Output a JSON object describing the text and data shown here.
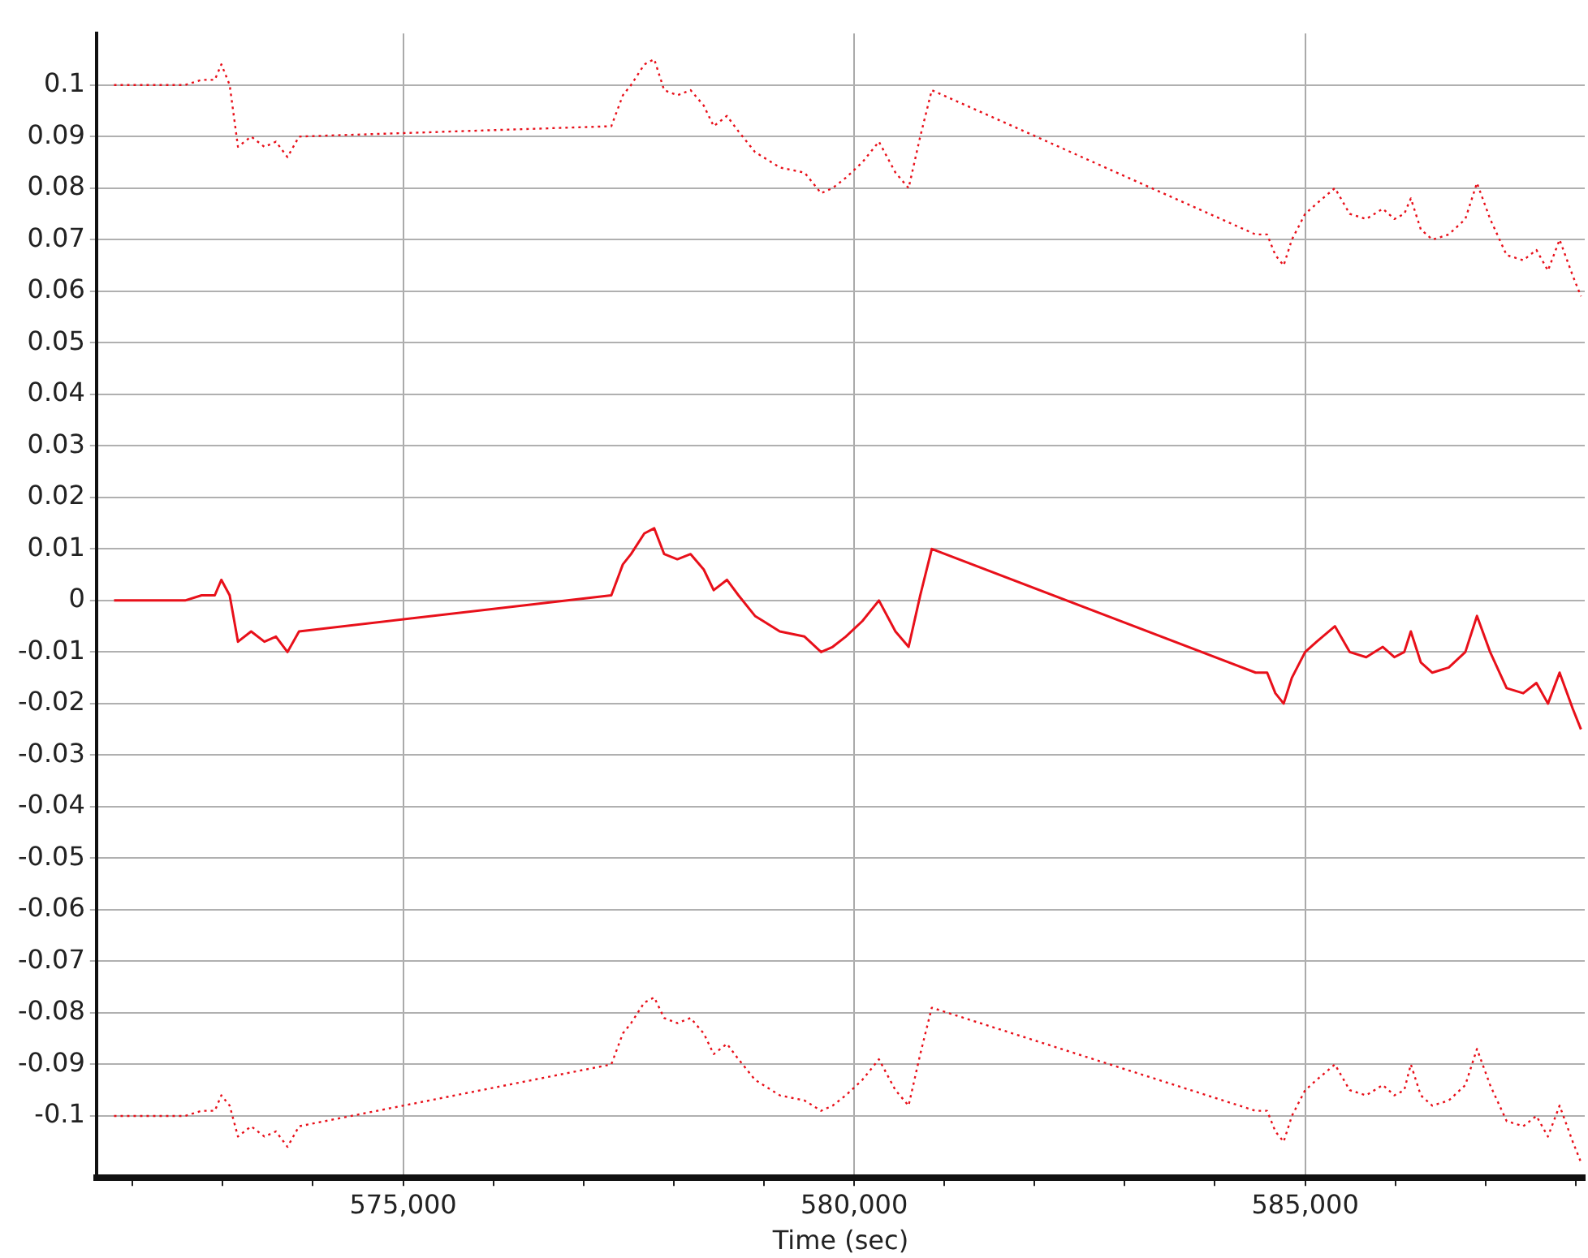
{
  "chart_data": {
    "type": "line",
    "xlabel": "Time (sec)",
    "x": [
      571795,
      572582,
      572766,
      572912,
      572985,
      573077,
      573169,
      573315,
      573462,
      573590,
      573718,
      573846,
      577308,
      577436,
      577527,
      577674,
      577784,
      577894,
      578040,
      578187,
      578333,
      578443,
      578590,
      578718,
      578901,
      579176,
      579450,
      579634,
      579762,
      579908,
      580091,
      580275,
      580458,
      580604,
      580733,
      580861,
      584451,
      584579,
      584670,
      584762,
      584853,
      585000,
      585128,
      585330,
      585494,
      585677,
      585861,
      585989,
      586099,
      586172,
      586282,
      586410,
      586593,
      586776,
      586905,
      587051,
      587234,
      587418,
      587564,
      587692,
      587821,
      587967,
      588058
    ],
    "series": [
      {
        "color": "#e8101a",
        "line_style": "dotted",
        "values": [
          0.1,
          0.1,
          0.101,
          0.101,
          0.104,
          0.1,
          0.088,
          0.09,
          0.088,
          0.089,
          0.086,
          0.09,
          0.092,
          0.098,
          0.1,
          0.104,
          0.105,
          0.099,
          0.098,
          0.099,
          0.096,
          0.092,
          0.094,
          0.091,
          0.087,
          0.084,
          0.083,
          0.079,
          0.08,
          0.082,
          0.085,
          0.089,
          0.083,
          0.08,
          0.09,
          0.099,
          0.071,
          0.071,
          0.067,
          0.065,
          0.07,
          0.075,
          0.077,
          0.08,
          0.075,
          0.074,
          0.076,
          0.074,
          0.075,
          0.078,
          0.072,
          0.07,
          0.071,
          0.074,
          0.081,
          0.074,
          0.067,
          0.066,
          0.068,
          0.064,
          0.07,
          0.063,
          0.059
        ]
      },
      {
        "color": "#e8101a",
        "line_style": "solid",
        "values": [
          0,
          0,
          0.001,
          0.001,
          0.004,
          0.001,
          -0.008,
          -0.006,
          -0.008,
          -0.007,
          -0.01,
          -0.006,
          0.001,
          0.007,
          0.009,
          0.013,
          0.014,
          0.009,
          0.008,
          0.009,
          0.006,
          0.002,
          0.004,
          0.001,
          -0.003,
          -0.006,
          -0.007,
          -0.01,
          -0.009,
          -0.007,
          -0.004,
          0,
          -0.006,
          -0.009,
          0.001,
          0.01,
          -0.014,
          -0.014,
          -0.018,
          -0.02,
          -0.015,
          -0.01,
          -0.008,
          -0.005,
          -0.01,
          -0.011,
          -0.009,
          -0.011,
          -0.01,
          -0.006,
          -0.012,
          -0.014,
          -0.013,
          -0.01,
          -0.003,
          -0.01,
          -0.017,
          -0.018,
          -0.016,
          -0.02,
          -0.014,
          -0.021,
          -0.025
        ]
      },
      {
        "color": "#e8101a",
        "line_style": "dotted",
        "values": [
          -0.1,
          -0.1,
          -0.099,
          -0.099,
          -0.096,
          -0.098,
          -0.104,
          -0.102,
          -0.104,
          -0.103,
          -0.106,
          -0.102,
          -0.09,
          -0.084,
          -0.082,
          -0.078,
          -0.077,
          -0.081,
          -0.082,
          -0.081,
          -0.084,
          -0.088,
          -0.086,
          -0.089,
          -0.093,
          -0.096,
          -0.097,
          -0.099,
          -0.098,
          -0.096,
          -0.093,
          -0.089,
          -0.095,
          -0.098,
          -0.088,
          -0.079,
          -0.099,
          -0.099,
          -0.103,
          -0.105,
          -0.1,
          -0.095,
          -0.093,
          -0.09,
          -0.095,
          -0.096,
          -0.094,
          -0.096,
          -0.095,
          -0.09,
          -0.096,
          -0.098,
          -0.097,
          -0.094,
          -0.087,
          -0.094,
          -0.101,
          -0.102,
          -0.1,
          -0.104,
          -0.098,
          -0.105,
          -0.109
        ]
      }
    ],
    "xlim": [
      571600,
      588100
    ],
    "xticks": [
      {
        "value": 572000,
        "label": null
      },
      {
        "value": 573000,
        "label": null
      },
      {
        "value": 574000,
        "label": null
      },
      {
        "value": 575000,
        "label": "575,000"
      },
      {
        "value": 576000,
        "label": null
      },
      {
        "value": 577000,
        "label": null
      },
      {
        "value": 578000,
        "label": null
      },
      {
        "value": 579000,
        "label": null
      },
      {
        "value": 580000,
        "label": "580,000"
      },
      {
        "value": 581000,
        "label": null
      },
      {
        "value": 582000,
        "label": null
      },
      {
        "value": 583000,
        "label": null
      },
      {
        "value": 584000,
        "label": null
      },
      {
        "value": 585000,
        "label": "585,000"
      },
      {
        "value": 586000,
        "label": null
      },
      {
        "value": 587000,
        "label": null
      },
      {
        "value": 588000,
        "label": null
      }
    ],
    "ylim": [
      -0.112,
      0.11
    ],
    "yticks": [
      -0.1,
      -0.09,
      -0.08,
      -0.07,
      -0.06,
      -0.05,
      -0.04,
      -0.03,
      -0.02,
      -0.01,
      0,
      0.01,
      0.02,
      0.03,
      0.04,
      0.05,
      0.06,
      0.07,
      0.08,
      0.09,
      0.1
    ],
    "grid": true,
    "legend": false,
    "marker": "none"
  }
}
